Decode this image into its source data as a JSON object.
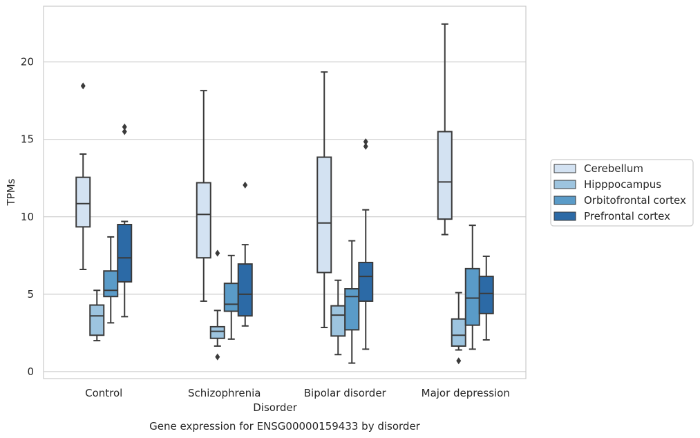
{
  "chart_data": {
    "type": "box",
    "caption": "Gene expression for ENSG00000159433 by disorder",
    "xlabel": "Disorder",
    "ylabel": "TPMs",
    "ylim": [
      -0.45,
      23.6
    ],
    "yticks": [
      0,
      5,
      10,
      15,
      20
    ],
    "grid": "horizontal",
    "legend_position": "right",
    "categories": [
      "Control",
      "Schizophrenia",
      "Bipolar disorder",
      "Major depression"
    ],
    "series": [
      {
        "name": "Cerebellum",
        "color": "#d3e2f2",
        "boxes": [
          {
            "whislo": 6.6,
            "q1": 9.35,
            "med": 10.85,
            "q3": 12.55,
            "whishi": 14.05,
            "fliers": [
              18.45
            ]
          },
          {
            "whislo": 4.55,
            "q1": 7.35,
            "med": 10.15,
            "q3": 12.2,
            "whishi": 18.15,
            "fliers": []
          },
          {
            "whislo": 2.85,
            "q1": 6.4,
            "med": 9.6,
            "q3": 13.85,
            "whishi": 19.35,
            "fliers": []
          },
          {
            "whislo": 8.85,
            "q1": 9.85,
            "med": 12.25,
            "q3": 15.5,
            "whishi": 22.45,
            "fliers": []
          }
        ]
      },
      {
        "name": "Hipppocampus",
        "color": "#9dc4df",
        "boxes": [
          {
            "whislo": 2.0,
            "q1": 2.35,
            "med": 3.6,
            "q3": 4.3,
            "whishi": 5.25,
            "fliers": []
          },
          {
            "whislo": 1.65,
            "q1": 2.15,
            "med": 2.6,
            "q3": 2.9,
            "whishi": 3.95,
            "fliers": [
              0.95,
              7.65
            ]
          },
          {
            "whislo": 1.1,
            "q1": 2.3,
            "med": 3.65,
            "q3": 4.25,
            "whishi": 5.9,
            "fliers": []
          },
          {
            "whislo": 1.4,
            "q1": 1.65,
            "med": 2.35,
            "q3": 3.4,
            "whishi": 5.1,
            "fliers": [
              0.7
            ]
          }
        ]
      },
      {
        "name": "Orbitofrontal cortex",
        "color": "#5a9bc8",
        "boxes": [
          {
            "whislo": 3.15,
            "q1": 4.85,
            "med": 5.25,
            "q3": 6.5,
            "whishi": 8.7,
            "fliers": []
          },
          {
            "whislo": 2.1,
            "q1": 3.9,
            "med": 4.35,
            "q3": 5.7,
            "whishi": 7.5,
            "fliers": []
          },
          {
            "whislo": 0.55,
            "q1": 2.7,
            "med": 4.85,
            "q3": 5.35,
            "whishi": 8.45,
            "fliers": []
          },
          {
            "whislo": 1.45,
            "q1": 3.0,
            "med": 4.75,
            "q3": 6.65,
            "whishi": 9.45,
            "fliers": []
          }
        ]
      },
      {
        "name": "Prefrontal cortex",
        "color": "#2c6aa6",
        "boxes": [
          {
            "whislo": 3.55,
            "q1": 5.8,
            "med": 7.35,
            "q3": 9.5,
            "whishi": 9.7,
            "fliers": [
              15.5,
              15.8
            ]
          },
          {
            "whislo": 2.95,
            "q1": 3.6,
            "med": 5.0,
            "q3": 6.95,
            "whishi": 8.2,
            "fliers": [
              12.05
            ]
          },
          {
            "whislo": 1.45,
            "q1": 4.55,
            "med": 6.15,
            "q3": 7.05,
            "whishi": 10.45,
            "fliers": [
              14.55,
              14.85
            ]
          },
          {
            "whislo": 2.05,
            "q1": 3.75,
            "med": 5.05,
            "q3": 6.15,
            "whishi": 7.45,
            "fliers": []
          }
        ]
      }
    ]
  }
}
